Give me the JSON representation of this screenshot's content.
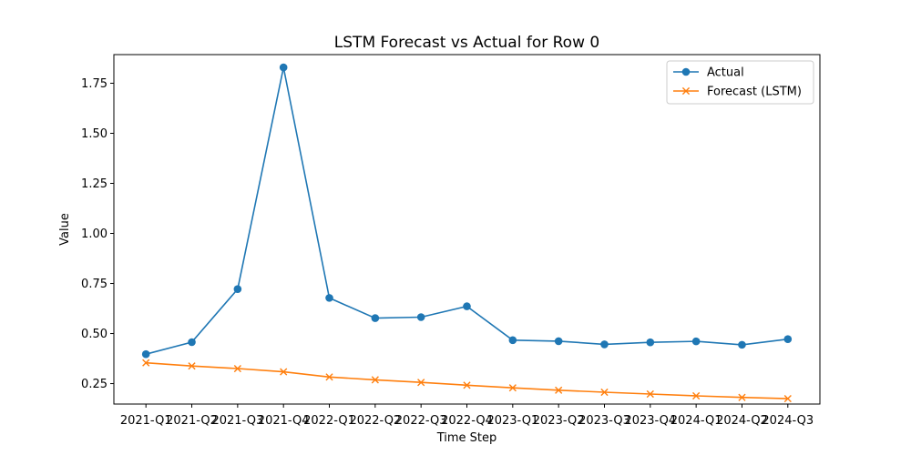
{
  "chart_data": {
    "type": "line",
    "title": "LSTM Forecast vs Actual for Row 0",
    "xlabel": "Time Step",
    "ylabel": "Value",
    "categories": [
      "2021-Q1",
      "2021-Q2",
      "2021-Q3",
      "2021-Q4",
      "2022-Q1",
      "2022-Q2",
      "2022-Q3",
      "2022-Q4",
      "2023-Q1",
      "2023-Q2",
      "2023-Q3",
      "2023-Q4",
      "2024-Q1",
      "2024-Q2",
      "2024-Q3"
    ],
    "ylim": [
      0.148,
      1.893
    ],
    "yticks": [
      0.25,
      0.5,
      0.75,
      1.0,
      1.25,
      1.5,
      1.75
    ],
    "ytick_labels": [
      "0.25",
      "0.50",
      "0.75",
      "1.00",
      "1.25",
      "1.50",
      "1.75"
    ],
    "grid": false,
    "legend_position": "top-right",
    "series": [
      {
        "name": "Actual",
        "color": "#1f77b4",
        "marker": "circle",
        "values": [
          0.397,
          0.457,
          0.722,
          1.829,
          0.678,
          0.577,
          0.582,
          0.636,
          0.467,
          0.462,
          0.446,
          0.456,
          0.461,
          0.444,
          0.472
        ]
      },
      {
        "name": "Forecast (LSTM)",
        "color": "#ff7f0e",
        "marker": "x",
        "values": [
          0.354,
          0.338,
          0.325,
          0.309,
          0.283,
          0.269,
          0.256,
          0.242,
          0.229,
          0.217,
          0.207,
          0.198,
          0.189,
          0.181,
          0.175
        ]
      }
    ]
  }
}
